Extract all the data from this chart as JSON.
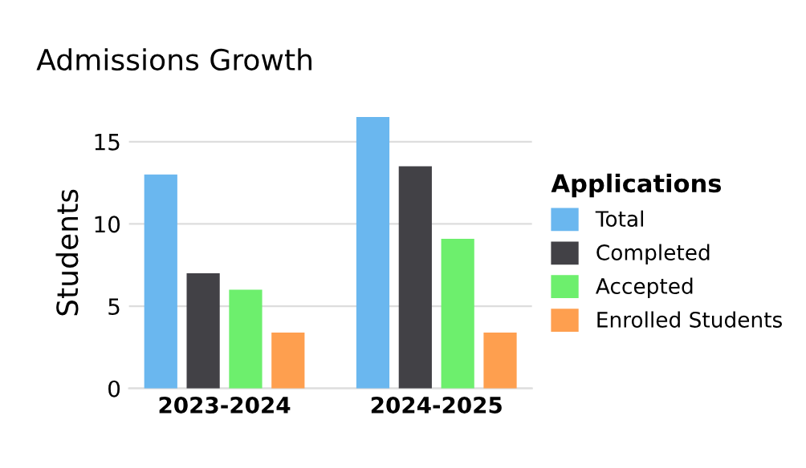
{
  "chart_data": {
    "type": "bar",
    "title": "Admissions Growth",
    "ylabel": "Students",
    "legend_title": "Applications",
    "categories": [
      "2023-2024",
      "2024-2025"
    ],
    "series": [
      {
        "name": "Total",
        "color": "#6ab7ef",
        "values": [
          13,
          16.5
        ]
      },
      {
        "name": "Completed",
        "color": "#424146",
        "values": [
          7,
          13.5
        ]
      },
      {
        "name": "Accepted",
        "color": "#6def6d",
        "values": [
          6,
          9.1
        ]
      },
      {
        "name": "Enrolled Students",
        "color": "#fe9f4f",
        "values": [
          3.4,
          3.4
        ]
      }
    ],
    "ylim": [
      0,
      16.5
    ],
    "yticks": [
      0,
      5,
      10,
      15
    ],
    "grid": "y",
    "legend": "right"
  }
}
